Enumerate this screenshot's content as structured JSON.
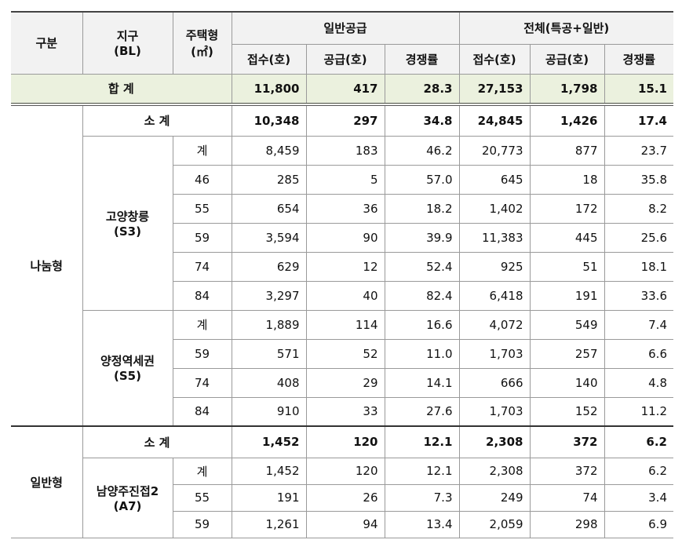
{
  "header": {
    "category": "구분",
    "district": [
      "지구",
      "(BL)"
    ],
    "type": [
      "주택형",
      "(㎡)"
    ],
    "general": "일반공급",
    "total": "전체(특공+일반)",
    "columns": [
      "접수(호)",
      "공급(호)",
      "경쟁률",
      "접수(호)",
      "공급(호)",
      "경쟁률"
    ]
  },
  "grand_total": {
    "label": "합 계",
    "values": [
      "11,800",
      "417",
      "28.3",
      "27,153",
      "1,798",
      "15.1"
    ]
  },
  "sections": [
    {
      "name": "나눔형",
      "subtotal": {
        "label": "소 계",
        "values": [
          "10,348",
          "297",
          "34.8",
          "24,845",
          "1,426",
          "17.4"
        ]
      },
      "districts": [
        {
          "name": [
            "고양창릉",
            "(S3)"
          ],
          "rows": [
            {
              "type": "계",
              "values": [
                "8,459",
                "183",
                "46.2",
                "20,773",
                "877",
                "23.7"
              ]
            },
            {
              "type": "46",
              "values": [
                "285",
                "5",
                "57.0",
                "645",
                "18",
                "35.8"
              ]
            },
            {
              "type": "55",
              "values": [
                "654",
                "36",
                "18.2",
                "1,402",
                "172",
                "8.2"
              ]
            },
            {
              "type": "59",
              "values": [
                "3,594",
                "90",
                "39.9",
                "11,383",
                "445",
                "25.6"
              ]
            },
            {
              "type": "74",
              "values": [
                "629",
                "12",
                "52.4",
                "925",
                "51",
                "18.1"
              ]
            },
            {
              "type": "84",
              "values": [
                "3,297",
                "40",
                "82.4",
                "6,418",
                "191",
                "33.6"
              ]
            }
          ]
        },
        {
          "name": [
            "양정역세권",
            "(S5)"
          ],
          "rows": [
            {
              "type": "계",
              "values": [
                "1,889",
                "114",
                "16.6",
                "4,072",
                "549",
                "7.4"
              ]
            },
            {
              "type": "59",
              "values": [
                "571",
                "52",
                "11.0",
                "1,703",
                "257",
                "6.6"
              ]
            },
            {
              "type": "74",
              "values": [
                "408",
                "29",
                "14.1",
                "666",
                "140",
                "4.8"
              ]
            },
            {
              "type": "84",
              "values": [
                "910",
                "33",
                "27.6",
                "1,703",
                "152",
                "11.2"
              ]
            }
          ]
        }
      ]
    },
    {
      "name": "일반형",
      "subtotal": {
        "label": "소 계",
        "values": [
          "1,452",
          "120",
          "12.1",
          "2,308",
          "372",
          "6.2"
        ]
      },
      "districts": [
        {
          "name": [
            "남양주진접2",
            "(A7)"
          ],
          "rows": [
            {
              "type": "계",
              "values": [
                "1,452",
                "120",
                "12.1",
                "2,308",
                "372",
                "6.2"
              ]
            },
            {
              "type": "55",
              "values": [
                "191",
                "26",
                "7.3",
                "249",
                "74",
                "3.4"
              ]
            },
            {
              "type": "59",
              "values": [
                "1,261",
                "94",
                "13.4",
                "2,059",
                "298",
                "6.9"
              ]
            }
          ]
        }
      ]
    }
  ]
}
